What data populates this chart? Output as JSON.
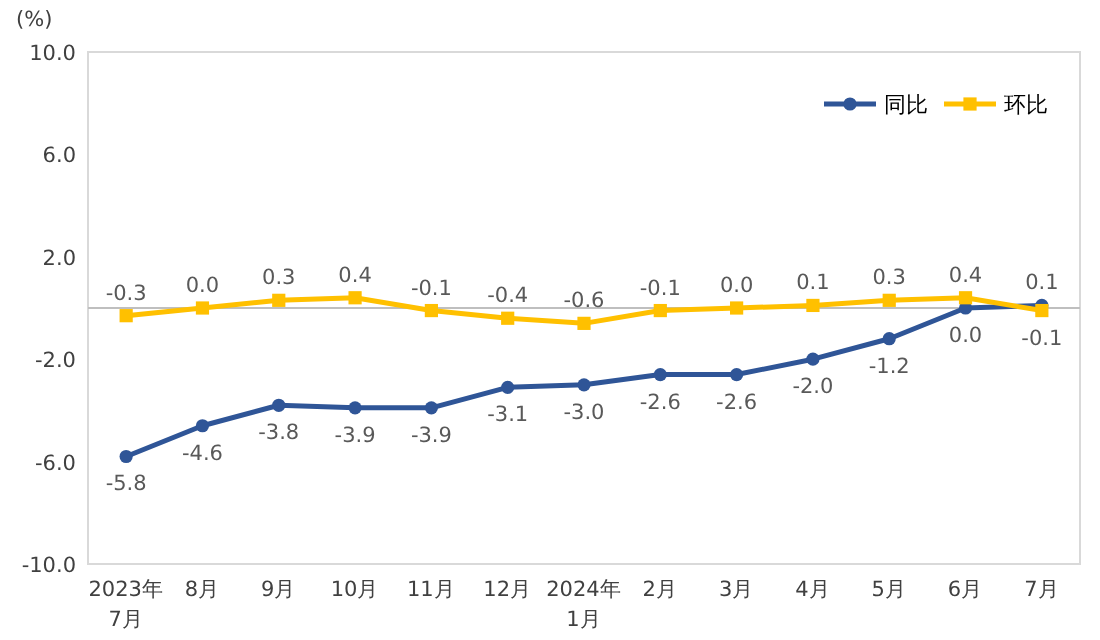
{
  "chart_data": {
    "type": "line",
    "ylabel": "(%)",
    "categories": [
      "2023年\n7月",
      "8月",
      "9月",
      "10月",
      "11月",
      "12月",
      "2024年\n1月",
      "2月",
      "3月",
      "4月",
      "5月",
      "6月",
      "7月"
    ],
    "series": [
      {
        "name": "同比",
        "color": "#2f5597",
        "marker": "circle",
        "values": [
          -5.8,
          -4.6,
          -3.8,
          -3.9,
          -3.9,
          -3.1,
          -3.0,
          -2.6,
          -2.6,
          -2.0,
          -1.2,
          0.0,
          0.1
        ],
        "value_labels": [
          "-5.8",
          "-4.6",
          "-3.8",
          "-3.9",
          "-3.9",
          "-3.1",
          "-3.0",
          "-2.6",
          "-2.6",
          "-2.0",
          "-1.2",
          "0.0",
          "0.1"
        ]
      },
      {
        "name": "环比",
        "color": "#ffc000",
        "marker": "square",
        "values": [
          -0.3,
          0.0,
          0.3,
          0.4,
          -0.1,
          -0.4,
          -0.6,
          -0.1,
          0.0,
          0.1,
          0.3,
          0.4,
          -0.1
        ],
        "value_labels": [
          "-0.3",
          "0.0",
          "0.3",
          "0.4",
          "-0.1",
          "-0.4",
          "-0.6",
          "-0.1",
          "0.0",
          "0.1",
          "0.3",
          "0.4",
          "-0.1"
        ]
      }
    ],
    "ylim": [
      -10,
      10
    ],
    "yticks": [
      {
        "value": 10,
        "label": "10.0"
      },
      {
        "value": 6,
        "label": "6.0"
      },
      {
        "value": 2,
        "label": "2.0"
      },
      {
        "value": -2,
        "label": "-2.0"
      },
      {
        "value": -6,
        "label": "-6.0"
      },
      {
        "value": -10,
        "label": "-10.0"
      }
    ],
    "grid": false,
    "legend": "top right"
  }
}
